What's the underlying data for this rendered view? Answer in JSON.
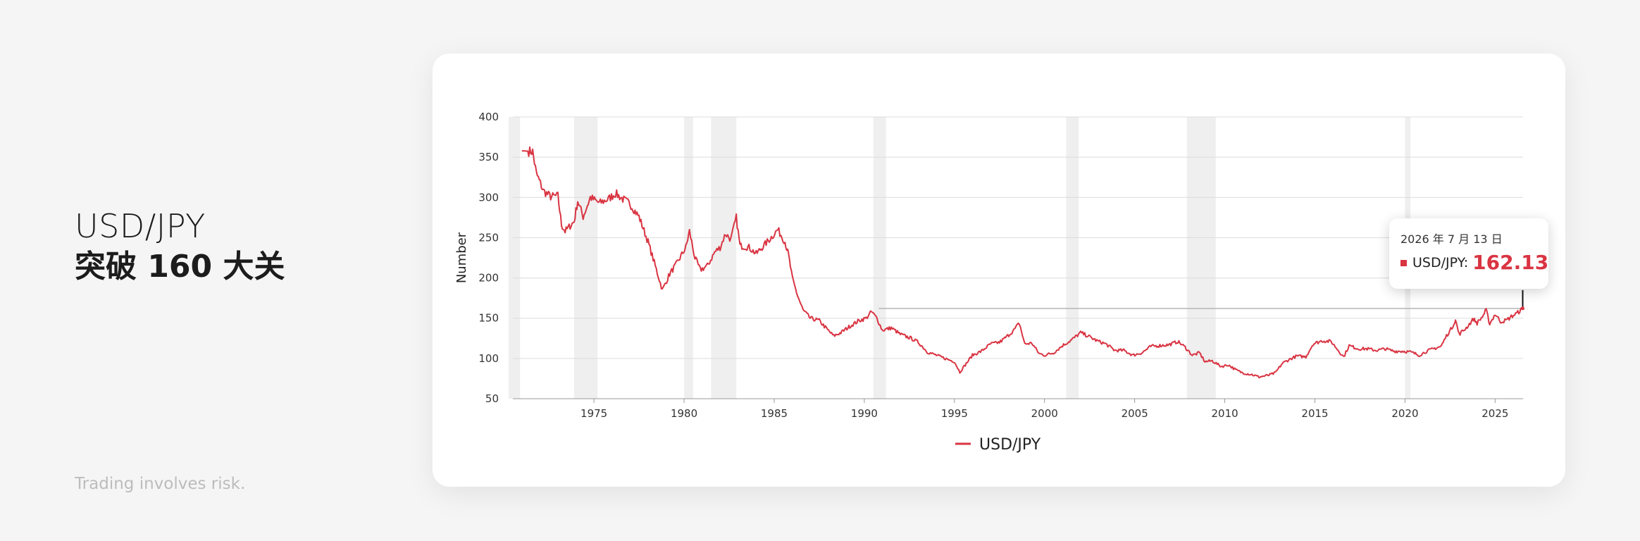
{
  "header": {
    "line1": "USD/JPY",
    "line2": "突破 160 大关"
  },
  "footer": {
    "disclaimer": "Trading involves risk."
  },
  "tooltip": {
    "date": "2026 年 7 月 13 日",
    "series_name": "USD/JPY:",
    "value": "162.13"
  },
  "colors": {
    "series": "#d93442",
    "shading": "#efefef",
    "grid": "#dcdcdc"
  },
  "chart_data": {
    "type": "line",
    "title": "",
    "xlabel": "",
    "ylabel": "Number",
    "ylim": [
      50,
      400
    ],
    "yticks": [
      50,
      100,
      150,
      200,
      250,
      300,
      350,
      400
    ],
    "xlim": [
      1970.5,
      2026.55
    ],
    "xticks": [
      1975,
      1980,
      1985,
      1990,
      1995,
      2000,
      2005,
      2010,
      2015,
      2020,
      2025
    ],
    "legend": "bottom-center",
    "grid": true,
    "reference_line": 162.13,
    "recession_bands": [
      [
        1970.0,
        1970.9
      ],
      [
        1973.9,
        1975.2
      ],
      [
        1980.0,
        1980.5
      ],
      [
        1981.5,
        1982.9
      ],
      [
        1990.5,
        1991.2
      ],
      [
        2001.2,
        2001.9
      ],
      [
        2007.9,
        2009.5
      ],
      [
        2020.0,
        2020.3
      ]
    ],
    "series": [
      {
        "name": "USD/JPY",
        "points": [
          [
            1971.0,
            358
          ],
          [
            1971.6,
            357
          ],
          [
            1971.8,
            330
          ],
          [
            1972.2,
            308
          ],
          [
            1972.6,
            301
          ],
          [
            1973.0,
            302
          ],
          [
            1973.2,
            266
          ],
          [
            1973.4,
            258
          ],
          [
            1973.9,
            270
          ],
          [
            1974.1,
            296
          ],
          [
            1974.4,
            276
          ],
          [
            1974.8,
            300
          ],
          [
            1975.3,
            293
          ],
          [
            1975.8,
            298
          ],
          [
            1976.2,
            305
          ],
          [
            1976.6,
            298
          ],
          [
            1977.0,
            292
          ],
          [
            1977.5,
            276
          ],
          [
            1978.0,
            245
          ],
          [
            1978.4,
            215
          ],
          [
            1978.8,
            185
          ],
          [
            1979.2,
            205
          ],
          [
            1979.6,
            218
          ],
          [
            1980.1,
            238
          ],
          [
            1980.3,
            258
          ],
          [
            1980.6,
            225
          ],
          [
            1980.9,
            210
          ],
          [
            1981.3,
            215
          ],
          [
            1981.7,
            232
          ],
          [
            1982.0,
            238
          ],
          [
            1982.3,
            255
          ],
          [
            1982.6,
            248
          ],
          [
            1982.9,
            275
          ],
          [
            1983.1,
            240
          ],
          [
            1983.6,
            238
          ],
          [
            1984.0,
            230
          ],
          [
            1984.5,
            242
          ],
          [
            1984.9,
            252
          ],
          [
            1985.2,
            260
          ],
          [
            1985.6,
            245
          ],
          [
            1985.8,
            228
          ],
          [
            1986.0,
            200
          ],
          [
            1986.3,
            178
          ],
          [
            1986.6,
            160
          ],
          [
            1987.0,
            150
          ],
          [
            1987.5,
            147
          ],
          [
            1987.9,
            137
          ],
          [
            1988.3,
            128
          ],
          [
            1988.7,
            132
          ],
          [
            1989.2,
            140
          ],
          [
            1989.7,
            147
          ],
          [
            1990.1,
            150
          ],
          [
            1990.4,
            158
          ],
          [
            1990.7,
            150
          ],
          [
            1991.0,
            135
          ],
          [
            1991.5,
            138
          ],
          [
            1992.0,
            130
          ],
          [
            1992.6,
            125
          ],
          [
            1993.0,
            120
          ],
          [
            1993.5,
            108
          ],
          [
            1994.0,
            104
          ],
          [
            1994.6,
            99
          ],
          [
            1995.0,
            96
          ],
          [
            1995.3,
            83
          ],
          [
            1995.6,
            92
          ],
          [
            1996.0,
            104
          ],
          [
            1996.5,
            109
          ],
          [
            1997.0,
            118
          ],
          [
            1997.5,
            120
          ],
          [
            1997.9,
            127
          ],
          [
            1998.3,
            135
          ],
          [
            1998.6,
            144
          ],
          [
            1998.9,
            118
          ],
          [
            1999.3,
            119
          ],
          [
            1999.7,
            106
          ],
          [
            2000.0,
            104
          ],
          [
            2000.5,
            107
          ],
          [
            2001.0,
            116
          ],
          [
            2001.5,
            123
          ],
          [
            2002.0,
            132
          ],
          [
            2002.4,
            128
          ],
          [
            2002.9,
            122
          ],
          [
            2003.4,
            118
          ],
          [
            2003.9,
            110
          ],
          [
            2004.4,
            110
          ],
          [
            2004.9,
            104
          ],
          [
            2005.4,
            107
          ],
          [
            2005.9,
            115
          ],
          [
            2006.4,
            116
          ],
          [
            2006.9,
            117
          ],
          [
            2007.4,
            121
          ],
          [
            2007.8,
            114
          ],
          [
            2008.2,
            104
          ],
          [
            2008.6,
            107
          ],
          [
            2008.9,
            96
          ],
          [
            2009.3,
            97
          ],
          [
            2009.8,
            90
          ],
          [
            2010.2,
            92
          ],
          [
            2010.6,
            86
          ],
          [
            2011.0,
            82
          ],
          [
            2011.5,
            80
          ],
          [
            2011.9,
            77
          ],
          [
            2012.4,
            79
          ],
          [
            2012.8,
            82
          ],
          [
            2013.2,
            94
          ],
          [
            2013.6,
            99
          ],
          [
            2014.0,
            103
          ],
          [
            2014.5,
            102
          ],
          [
            2014.9,
            118
          ],
          [
            2015.4,
            122
          ],
          [
            2015.9,
            121
          ],
          [
            2016.3,
            110
          ],
          [
            2016.6,
            102
          ],
          [
            2016.9,
            116
          ],
          [
            2017.4,
            112
          ],
          [
            2017.9,
            112
          ],
          [
            2018.4,
            110
          ],
          [
            2018.9,
            112
          ],
          [
            2019.4,
            109
          ],
          [
            2019.9,
            109
          ],
          [
            2020.3,
            108
          ],
          [
            2020.8,
            104
          ],
          [
            2021.2,
            109
          ],
          [
            2021.7,
            113
          ],
          [
            2022.0,
            115
          ],
          [
            2022.3,
            128
          ],
          [
            2022.6,
            138
          ],
          [
            2022.8,
            148
          ],
          [
            2023.0,
            130
          ],
          [
            2023.4,
            138
          ],
          [
            2023.8,
            149
          ],
          [
            2024.0,
            144
          ],
          [
            2024.3,
            152
          ],
          [
            2024.5,
            160
          ],
          [
            2024.7,
            143
          ],
          [
            2025.0,
            155
          ],
          [
            2025.3,
            146
          ],
          [
            2025.6,
            147
          ],
          [
            2025.9,
            152
          ],
          [
            2026.2,
            156
          ],
          [
            2026.53,
            162.13
          ]
        ]
      }
    ]
  }
}
